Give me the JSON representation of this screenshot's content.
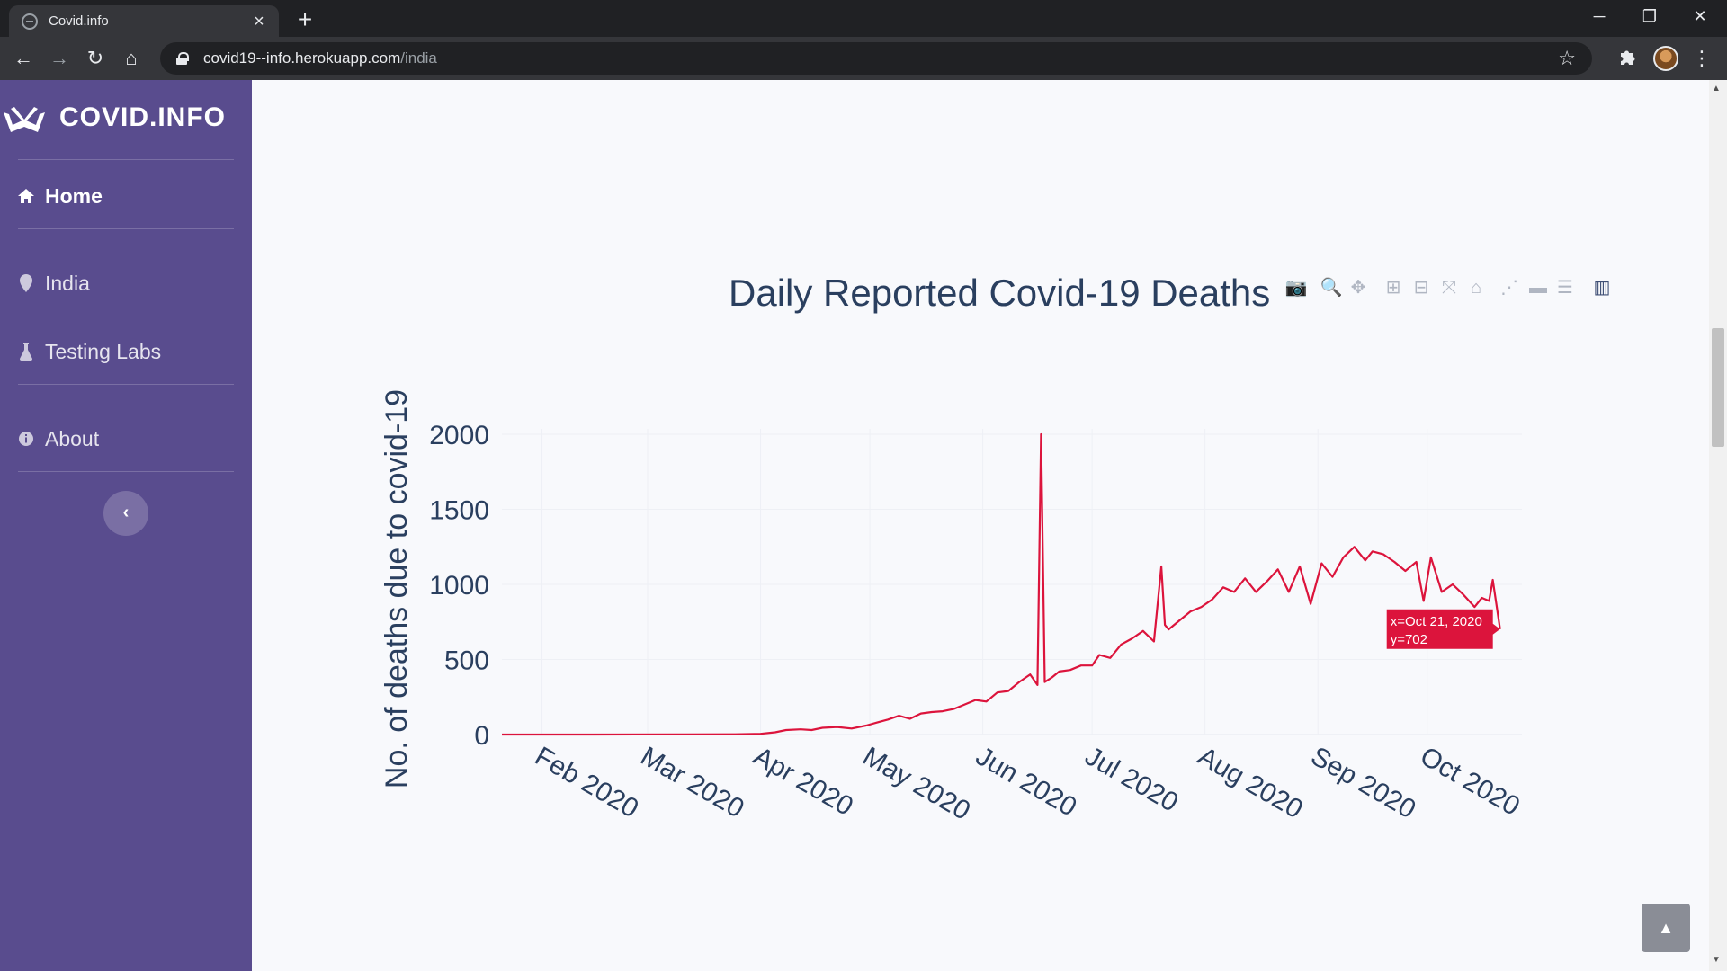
{
  "browser": {
    "tab": {
      "title": "Covid.info"
    },
    "url": {
      "host": "covid19--info.herokuapp.com",
      "path": "/india"
    }
  },
  "sidebar": {
    "brand": "COVID.INFO",
    "items": [
      {
        "label": "Home",
        "icon": "home-icon",
        "active": true
      },
      {
        "label": "India",
        "icon": "map-pin-icon",
        "active": false
      },
      {
        "label": "Testing Labs",
        "icon": "flask-icon",
        "active": false
      },
      {
        "label": "About",
        "icon": "info-icon",
        "active": false
      }
    ],
    "toggle_icon": "chevron-left-icon"
  },
  "chart_data": {
    "type": "line",
    "title": "Daily Reported Covid-19 Deaths",
    "xlabel": "",
    "ylabel": "No. of deaths due to covid-19",
    "ylim": [
      0,
      2000
    ],
    "yticks": [
      0,
      500,
      1000,
      1500,
      2000
    ],
    "xticks": [
      "Feb 2020",
      "Mar 2020",
      "Apr 2020",
      "May 2020",
      "Jun 2020",
      "Jul 2020",
      "Aug 2020",
      "Sep 2020",
      "Oct 2020"
    ],
    "xlim": [
      "2020-01-21",
      "2020-10-27"
    ],
    "grid": true,
    "series": [
      {
        "color": "#dc143c",
        "x": [
          "2020-01-21",
          "2020-02-15",
          "2020-03-10",
          "2020-03-25",
          "2020-04-01",
          "2020-04-05",
          "2020-04-08",
          "2020-04-12",
          "2020-04-15",
          "2020-04-18",
          "2020-04-22",
          "2020-04-26",
          "2020-04-30",
          "2020-05-03",
          "2020-05-06",
          "2020-05-09",
          "2020-05-12",
          "2020-05-15",
          "2020-05-18",
          "2020-05-21",
          "2020-05-24",
          "2020-05-27",
          "2020-05-30",
          "2020-06-02",
          "2020-06-05",
          "2020-06-08",
          "2020-06-11",
          "2020-06-14",
          "2020-06-16",
          "2020-06-17",
          "2020-06-18",
          "2020-06-20",
          "2020-06-22",
          "2020-06-25",
          "2020-06-28",
          "2020-07-01",
          "2020-07-03",
          "2020-07-06",
          "2020-07-09",
          "2020-07-12",
          "2020-07-15",
          "2020-07-18",
          "2020-07-20",
          "2020-07-21",
          "2020-07-22",
          "2020-07-25",
          "2020-07-28",
          "2020-07-31",
          "2020-08-03",
          "2020-08-06",
          "2020-08-09",
          "2020-08-12",
          "2020-08-15",
          "2020-08-18",
          "2020-08-21",
          "2020-08-24",
          "2020-08-27",
          "2020-08-30",
          "2020-09-02",
          "2020-09-05",
          "2020-09-08",
          "2020-09-11",
          "2020-09-14",
          "2020-09-16",
          "2020-09-19",
          "2020-09-22",
          "2020-09-25",
          "2020-09-28",
          "2020-09-30",
          "2020-10-02",
          "2020-10-05",
          "2020-10-08",
          "2020-10-11",
          "2020-10-14",
          "2020-10-16",
          "2020-10-18",
          "2020-10-19",
          "2020-10-21"
        ],
        "y": [
          0,
          0,
          1,
          2,
          5,
          15,
          30,
          35,
          30,
          45,
          50,
          40,
          60,
          80,
          100,
          125,
          105,
          140,
          150,
          155,
          170,
          200,
          230,
          220,
          280,
          290,
          350,
          400,
          330,
          2000,
          350,
          380,
          420,
          430,
          460,
          460,
          530,
          510,
          600,
          640,
          690,
          620,
          1120,
          730,
          700,
          760,
          820,
          850,
          900,
          980,
          950,
          1040,
          950,
          1020,
          1100,
          950,
          1120,
          870,
          1140,
          1050,
          1180,
          1250,
          1160,
          1220,
          1200,
          1150,
          1090,
          1150,
          890,
          1180,
          950,
          1000,
          930,
          850,
          910,
          890,
          1030,
          702
        ]
      }
    ]
  },
  "tooltip": {
    "x_text": "x=Oct 21, 2020",
    "y_text": "y=702"
  }
}
